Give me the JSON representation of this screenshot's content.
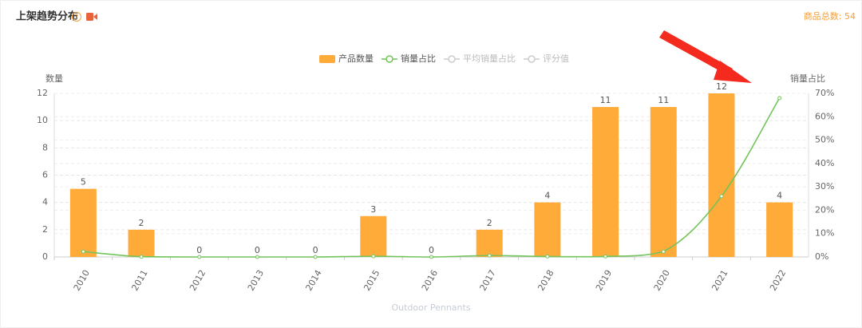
{
  "chart_data": {
    "type": "bar_line",
    "title": "上架趋势分布",
    "total_label": "商品总数: 54",
    "y_label": "数量",
    "y2_label": "销量占比",
    "x_label": "Outdoor Pennants",
    "categories": [
      "2010",
      "2011",
      "2012",
      "2013",
      "2014",
      "2015",
      "2016",
      "2017",
      "2018",
      "2019",
      "2020",
      "2021",
      "2022"
    ],
    "series": [
      {
        "name": "产品数量",
        "color": "#ffab3a",
        "values": [
          5,
          2,
          0,
          0,
          0,
          3,
          0,
          2,
          4,
          11,
          11,
          12,
          4
        ]
      },
      {
        "name": "销量占比",
        "color": "#72c45a",
        "axis": "y2",
        "values": [
          2.3,
          0.1,
          0,
          0,
          0,
          0.3,
          0,
          0.6,
          0.2,
          0.2,
          2.3,
          26,
          68
        ]
      }
    ],
    "inactive_legend": [
      "平均销量占比",
      "评分值"
    ],
    "ylim": [
      0,
      12
    ],
    "yticks": [
      0,
      2,
      4,
      6,
      8,
      10,
      12
    ],
    "y2lim": [
      0,
      70
    ],
    "y2ticks": [
      {
        "value": 0,
        "label": "0%"
      },
      {
        "value": 10,
        "label": "10%"
      },
      {
        "value": 20,
        "label": "20%"
      },
      {
        "value": 30,
        "label": "30%"
      },
      {
        "value": 40,
        "label": "40%"
      },
      {
        "value": 50,
        "label": "50%"
      },
      {
        "value": 60,
        "label": "60%"
      },
      {
        "value": 70,
        "label": "70%"
      }
    ],
    "grid": true
  }
}
